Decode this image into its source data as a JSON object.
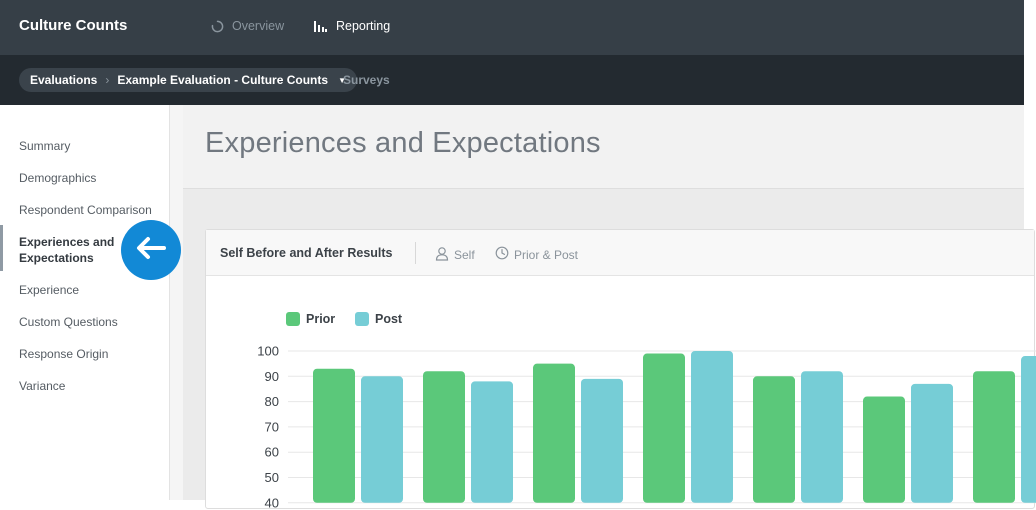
{
  "app": {
    "brand": "Culture Counts",
    "nav": [
      {
        "label": "Overview",
        "icon": "loading-circle-icon"
      },
      {
        "label": "Reporting",
        "icon": "bar-chart-icon"
      }
    ]
  },
  "breadcrumb": {
    "root": "Evaluations",
    "current": "Example Evaluation - Culture Counts",
    "surveys": "Surveys"
  },
  "sidebar": {
    "items": [
      {
        "label": "Summary"
      },
      {
        "label": "Demographics"
      },
      {
        "label": "Respondent Comparison"
      },
      {
        "label": "Experiences and Expectations",
        "active": true
      },
      {
        "label": "Experience"
      },
      {
        "label": "Custom Questions"
      },
      {
        "label": "Response Origin"
      },
      {
        "label": "Variance"
      }
    ]
  },
  "page": {
    "title": "Experiences and Expectations"
  },
  "card": {
    "title": "Self Before and After Results",
    "tabs": [
      {
        "label": "Self",
        "icon": "person-icon"
      },
      {
        "label": "Prior & Post",
        "icon": "clock-icon"
      }
    ]
  },
  "colors": {
    "prior": "#5bc87a",
    "post": "#76cdd6",
    "accent": "#1289d6"
  },
  "chart_data": {
    "type": "bar",
    "ylim": [
      40,
      100
    ],
    "yticks": [
      100,
      90,
      80,
      70,
      60,
      50,
      40
    ],
    "grid": true,
    "legend": "top-left",
    "series": [
      {
        "name": "Prior",
        "values": [
          93,
          92,
          95,
          99,
          90,
          82,
          92
        ]
      },
      {
        "name": "Post",
        "values": [
          90,
          88,
          89,
          100,
          92,
          87,
          98
        ]
      }
    ]
  }
}
